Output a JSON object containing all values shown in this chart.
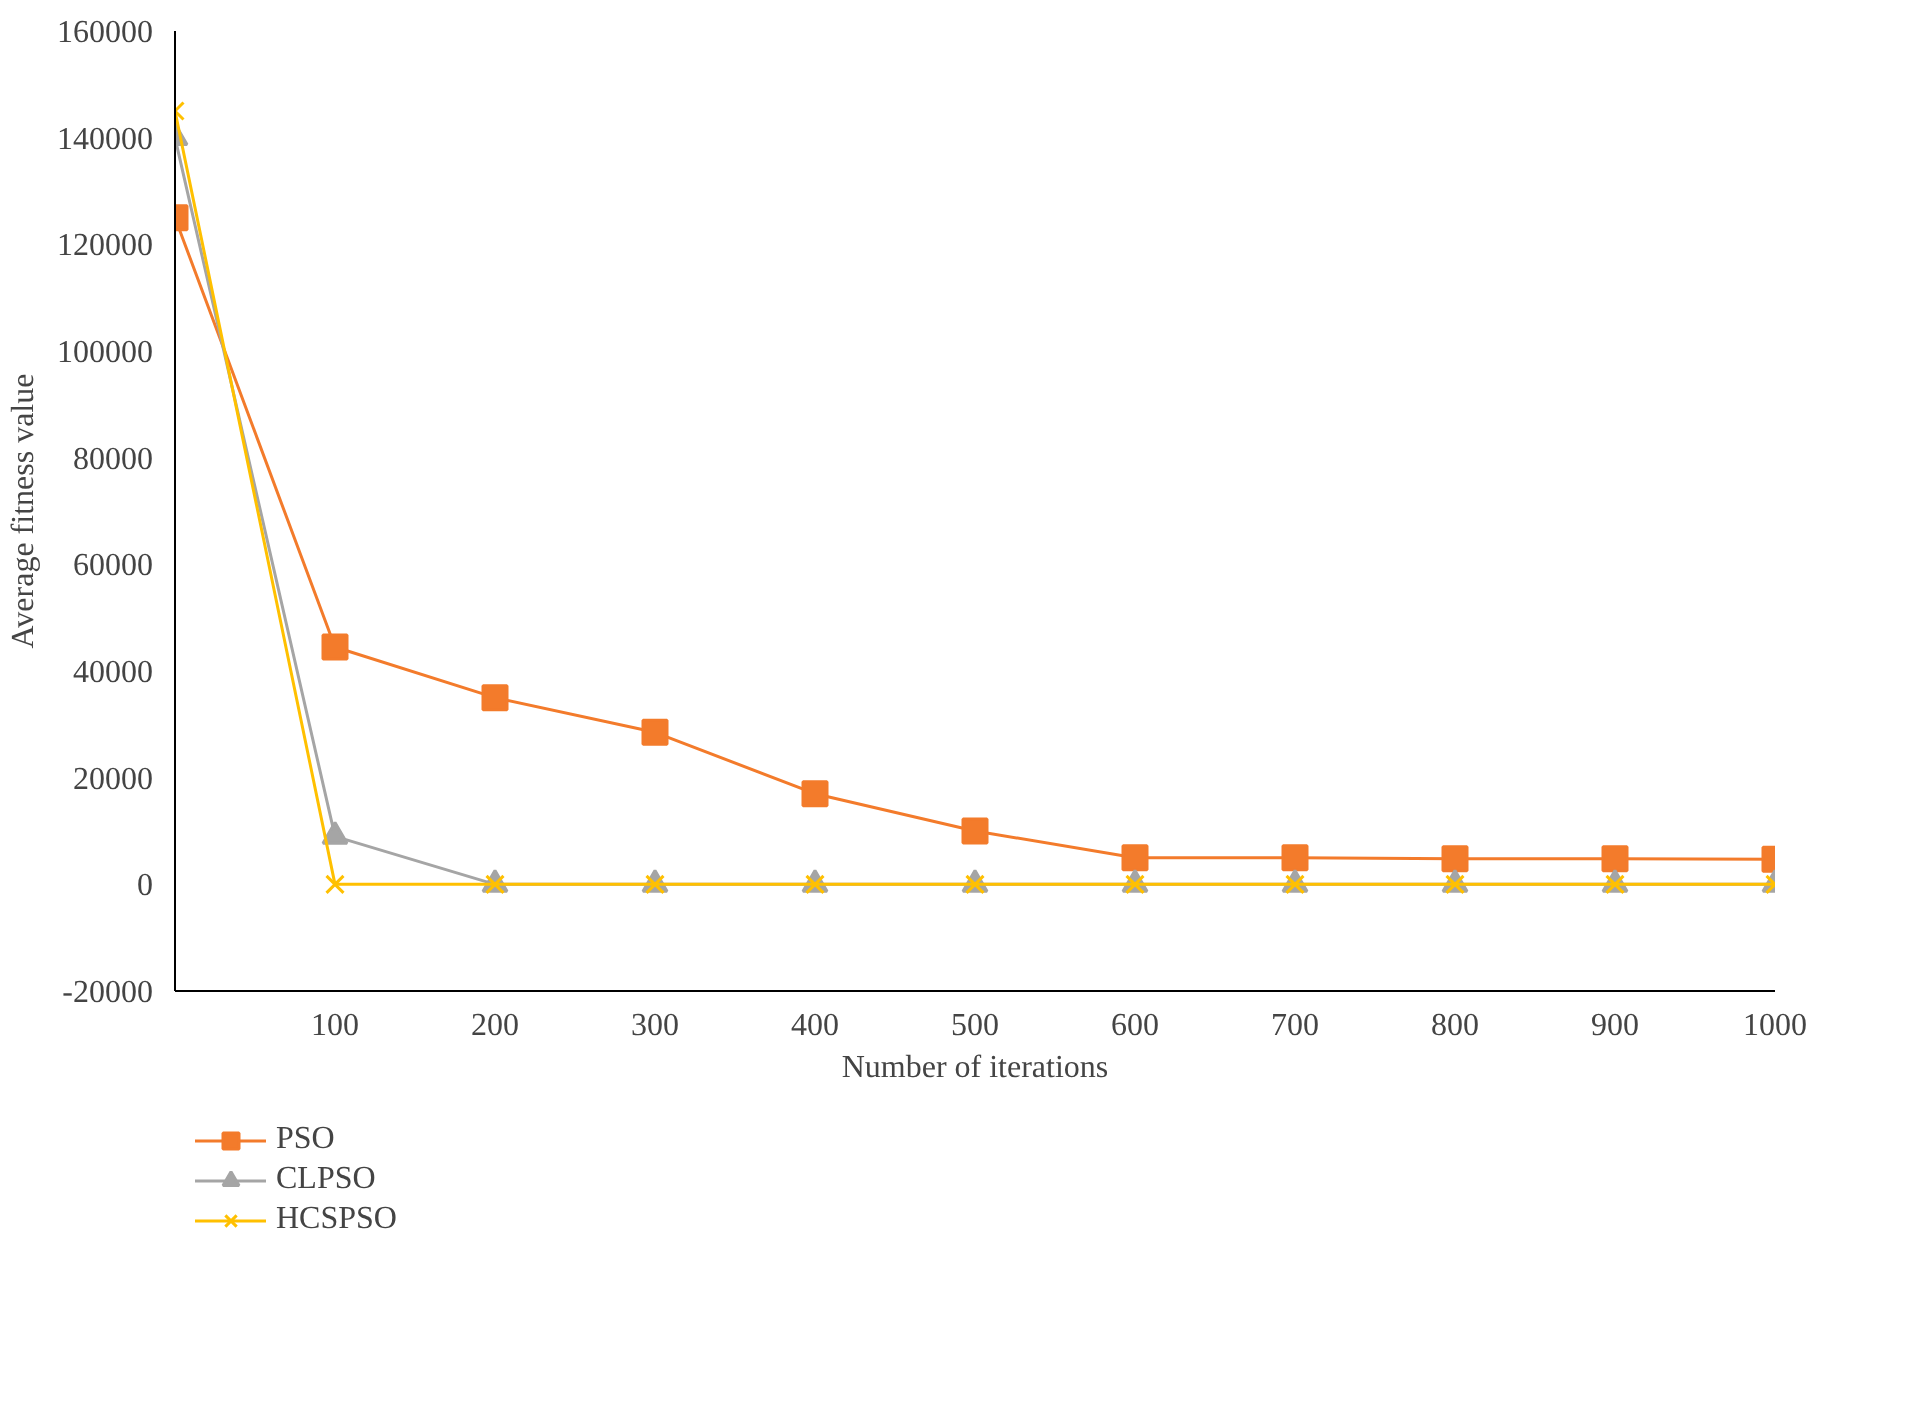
{
  "chart_data": {
    "type": "line",
    "xlabel": "Number of iterations",
    "ylabel": "Average fitness value",
    "x": [
      0,
      100,
      200,
      300,
      400,
      500,
      600,
      700,
      800,
      900,
      1000
    ],
    "xlim": [
      0,
      1000
    ],
    "xticks": [
      100,
      200,
      300,
      400,
      500,
      600,
      700,
      800,
      900,
      1000
    ],
    "ylim": [
      -20000,
      160000
    ],
    "yticks": [
      -20000,
      0,
      20000,
      40000,
      60000,
      80000,
      100000,
      120000,
      140000,
      160000
    ],
    "grid": false,
    "legend": "bottom left",
    "series": [
      {
        "name": "PSO",
        "color": "#f37b2b",
        "marker": "square",
        "values": [
          125000,
          44500,
          35000,
          28500,
          17000,
          10000,
          5000,
          5000,
          4800,
          4800,
          4700
        ]
      },
      {
        "name": "CLPSO",
        "color": "#a5a5a5",
        "marker": "triangle",
        "values": [
          140000,
          9000,
          0,
          0,
          0,
          0,
          0,
          0,
          0,
          0,
          0
        ]
      },
      {
        "name": "HCSPSO",
        "color": "#ffc000",
        "marker": "cross",
        "values": [
          145000,
          0,
          0,
          0,
          0,
          0,
          0,
          0,
          0,
          0,
          0
        ]
      }
    ]
  }
}
